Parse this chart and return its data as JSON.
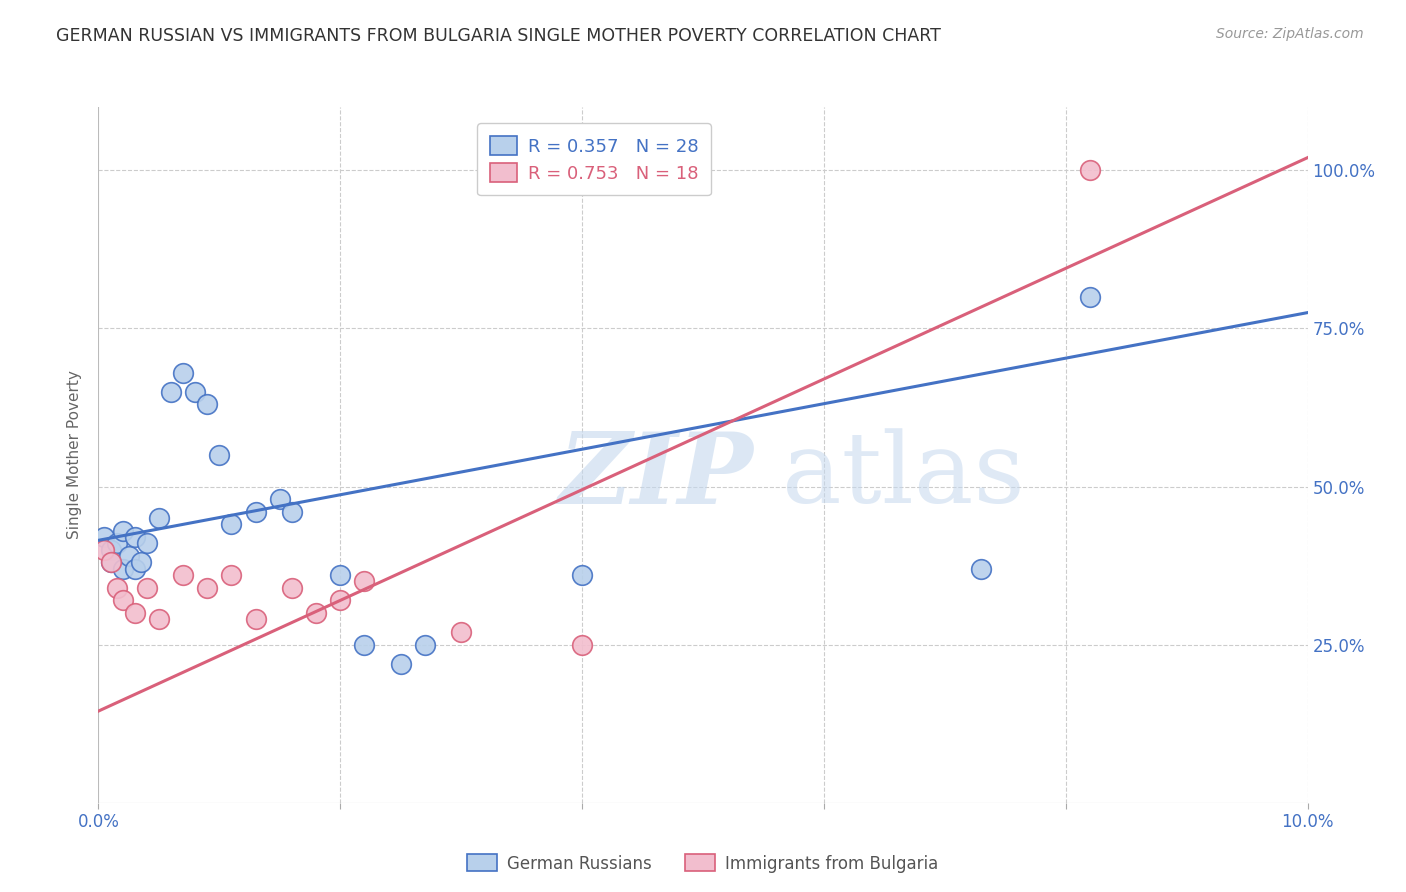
{
  "title": "GERMAN RUSSIAN VS IMMIGRANTS FROM BULGARIA SINGLE MOTHER POVERTY CORRELATION CHART",
  "source": "Source: ZipAtlas.com",
  "ylabel": "Single Mother Poverty",
  "legend_blue_R": "R = 0.357",
  "legend_blue_N": "N = 28",
  "legend_pink_R": "R = 0.753",
  "legend_pink_N": "N = 18",
  "blue_color": "#b8d0eb",
  "pink_color": "#f2bece",
  "blue_line_color": "#4472c4",
  "pink_line_color": "#d9607a",
  "blue_points_x": [
    0.0005,
    0.001,
    0.001,
    0.0015,
    0.002,
    0.002,
    0.0025,
    0.003,
    0.003,
    0.0035,
    0.004,
    0.005,
    0.006,
    0.007,
    0.008,
    0.009,
    0.01,
    0.011,
    0.013,
    0.015,
    0.016,
    0.02,
    0.022,
    0.025,
    0.027,
    0.04,
    0.073,
    0.082
  ],
  "blue_points_y": [
    0.42,
    0.4,
    0.38,
    0.41,
    0.37,
    0.43,
    0.39,
    0.37,
    0.42,
    0.38,
    0.41,
    0.45,
    0.65,
    0.68,
    0.65,
    0.63,
    0.55,
    0.44,
    0.46,
    0.48,
    0.46,
    0.36,
    0.25,
    0.22,
    0.25,
    0.36,
    0.37,
    0.8
  ],
  "pink_points_x": [
    0.0005,
    0.001,
    0.0015,
    0.002,
    0.003,
    0.004,
    0.005,
    0.007,
    0.009,
    0.011,
    0.013,
    0.016,
    0.018,
    0.02,
    0.022,
    0.03,
    0.04,
    0.082
  ],
  "pink_points_y": [
    0.4,
    0.38,
    0.34,
    0.32,
    0.3,
    0.34,
    0.29,
    0.36,
    0.34,
    0.36,
    0.29,
    0.34,
    0.3,
    0.32,
    0.35,
    0.27,
    0.25,
    1.0
  ],
  "blue_line_x": [
    0.0,
    0.1
  ],
  "blue_line_y": [
    0.415,
    0.775
  ],
  "pink_line_x": [
    0.0,
    0.1
  ],
  "pink_line_y": [
    0.145,
    1.02
  ],
  "xlim": [
    0.0,
    0.1
  ],
  "ylim": [
    0.0,
    1.1
  ],
  "x_ticks": [
    0.0,
    0.02,
    0.04,
    0.06,
    0.08,
    0.1
  ],
  "y_ticks": [
    0.0,
    0.25,
    0.5,
    0.75,
    1.0
  ],
  "background_color": "#ffffff",
  "grid_color": "#cccccc"
}
